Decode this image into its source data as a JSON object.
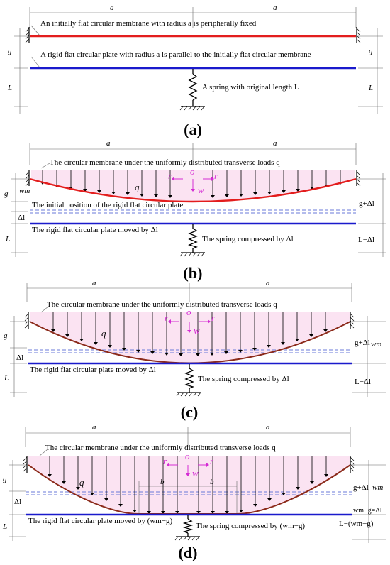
{
  "panels": {
    "a": {
      "caption": "(a)",
      "dim_a_left": "a",
      "dim_a_right": "a",
      "dim_g_left": "g",
      "dim_g_right": "g",
      "dim_L_left": "L",
      "dim_L_right": "L",
      "membrane_note": "An initially flat circular membrane with radius a is peripherally fixed",
      "plate_note": "A rigid flat circular plate with radius a is parallel to the initially flat circular membrane",
      "spring_note": "A spring with original length L"
    },
    "b": {
      "caption": "(b)",
      "dim_a_left": "a",
      "dim_a_right": "a",
      "dim_g": "g",
      "dim_wm": "wm",
      "dim_dl": "Δl",
      "dim_L": "L",
      "load_note": "The circular membrane under the uniformly distributed transverse loads q",
      "q": "q",
      "o": "o",
      "r_left": "r",
      "r_right": "r",
      "w": "w",
      "initial_note": "The initial position of the  rigid flat circular plate",
      "moved_note": "The  rigid flat circular plate moved by Δl",
      "spring_note": "The spring compressed by Δl",
      "right_g": "g+Δl",
      "right_L": "L−Δl"
    },
    "c": {
      "caption": "(c)",
      "dim_a_left": "a",
      "dim_a_right": "a",
      "dim_g": "g",
      "dim_dl": "Δl",
      "dim_L": "L",
      "load_note": "The circular membrane under the uniformly distributed transverse loads q",
      "q": "q",
      "o": "o",
      "r_left": "r",
      "r_right": "r",
      "w": "w",
      "moved_note": "The  rigid flat circular plate moved by Δl",
      "spring_note": "The spring compressed by Δl",
      "right_g": "g+Δl",
      "right_wm": "wm",
      "right_L": "L−Δl"
    },
    "d": {
      "caption": "(d)",
      "dim_a_left": "a",
      "dim_a_right": "a",
      "dim_b_left": "b",
      "dim_b_right": "b",
      "dim_g": "g",
      "dim_dl": "Δl",
      "dim_L": "L",
      "load_note": "The circular membrane under the uniformly distributed transverse loads q",
      "q": "q",
      "o": "o",
      "r_left": "r",
      "r_right": "r",
      "w": "w",
      "moved_note": "The  rigid flat circular plate moved by (wm−g)",
      "spring_note": "The spring compressed by (wm−g)",
      "right_g": "g+Δl",
      "right_wm": "wm",
      "right_wg": "wm−g=Δl",
      "right_L": "L−(wm−g)"
    }
  }
}
